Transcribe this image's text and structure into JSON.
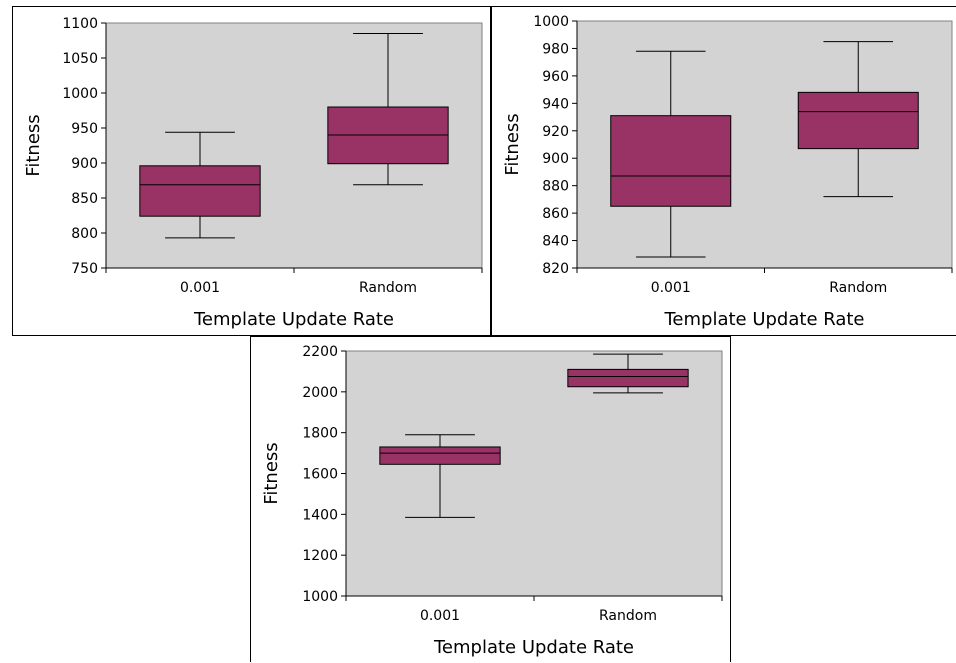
{
  "chart_data": [
    {
      "type": "box",
      "xlabel": "Template Update Rate",
      "ylabel": "Fitness",
      "ylim": [
        750,
        1100
      ],
      "yticks": [
        750,
        800,
        850,
        900,
        950,
        1000,
        1050,
        1100
      ],
      "categories": [
        "0.001",
        "Random"
      ],
      "boxes": [
        {
          "category": "0.001",
          "min": 793,
          "q1": 824,
          "median": 869,
          "q3": 896,
          "max": 944
        },
        {
          "category": "Random",
          "min": 869,
          "q1": 899,
          "median": 940,
          "q3": 980,
          "max": 1085
        }
      ],
      "colors": {
        "plot_bg": "#d3d3d3",
        "box": "#993366"
      }
    },
    {
      "type": "box",
      "xlabel": "Template Update Rate",
      "ylabel": "Fitness",
      "ylim": [
        820,
        1000
      ],
      "yticks": [
        820,
        840,
        860,
        880,
        900,
        920,
        940,
        960,
        980,
        1000
      ],
      "categories": [
        "0.001",
        "Random"
      ],
      "boxes": [
        {
          "category": "0.001",
          "min": 828,
          "q1": 865,
          "median": 887,
          "q3": 931,
          "max": 978
        },
        {
          "category": "Random",
          "min": 872,
          "q1": 907,
          "median": 934,
          "q3": 948,
          "max": 985
        }
      ],
      "colors": {
        "plot_bg": "#d3d3d3",
        "box": "#993366"
      }
    },
    {
      "type": "box",
      "xlabel": "Template Update Rate",
      "ylabel": "Fitness",
      "ylim": [
        1000,
        2200
      ],
      "yticks": [
        1000,
        1200,
        1400,
        1600,
        1800,
        2000,
        2200
      ],
      "categories": [
        "0.001",
        "Random"
      ],
      "boxes": [
        {
          "category": "0.001",
          "min": 1385,
          "q1": 1645,
          "median": 1700,
          "q3": 1730,
          "max": 1790
        },
        {
          "category": "Random",
          "min": 1995,
          "q1": 2025,
          "median": 2075,
          "q3": 2110,
          "max": 2185
        }
      ],
      "colors": {
        "plot_bg": "#d3d3d3",
        "box": "#993366"
      }
    }
  ]
}
